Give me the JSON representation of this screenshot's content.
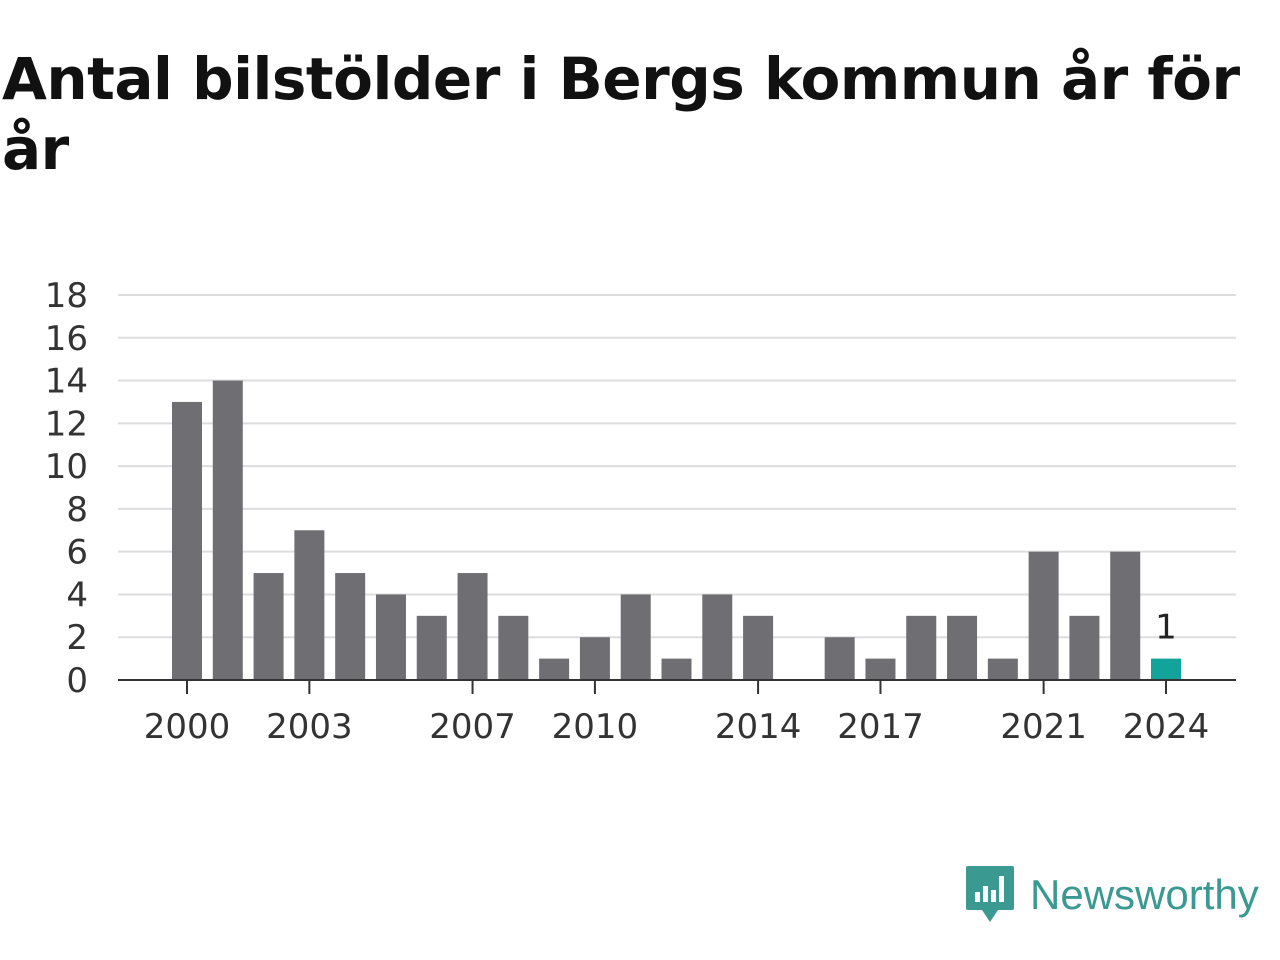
{
  "chart_data": {
    "type": "bar",
    "title": "Antal bilstölder i Bergs kommun år för år",
    "categories": [
      "2000",
      "2001",
      "2002",
      "2003",
      "2004",
      "2005",
      "2006",
      "2007",
      "2008",
      "2009",
      "2010",
      "2011",
      "2012",
      "2013",
      "2014",
      "2015",
      "2016",
      "2017",
      "2018",
      "2019",
      "2020",
      "2021",
      "2022",
      "2023",
      "2024"
    ],
    "values": [
      13,
      14,
      5,
      7,
      5,
      4,
      3,
      5,
      3,
      1,
      2,
      4,
      1,
      4,
      3,
      0,
      2,
      1,
      3,
      3,
      1,
      6,
      3,
      6,
      1
    ],
    "xticks": [
      "2000",
      "2003",
      "2007",
      "2010",
      "2014",
      "2017",
      "2021",
      "2024"
    ],
    "yticks": [
      "0",
      "2",
      "4",
      "6",
      "8",
      "10",
      "12",
      "14",
      "16",
      "18"
    ],
    "ylim": [
      0,
      18
    ],
    "grid": true,
    "highlight": {
      "category": "2024",
      "label": "1"
    },
    "colors": {
      "bar": "#6f6e73",
      "highlight": "#12a39b",
      "grid": "#dddddd",
      "axis": "#333333"
    }
  },
  "brand": {
    "name": "Newsworthy",
    "icon": "newsworthy-logo-icon",
    "color": "#3a9a92"
  }
}
